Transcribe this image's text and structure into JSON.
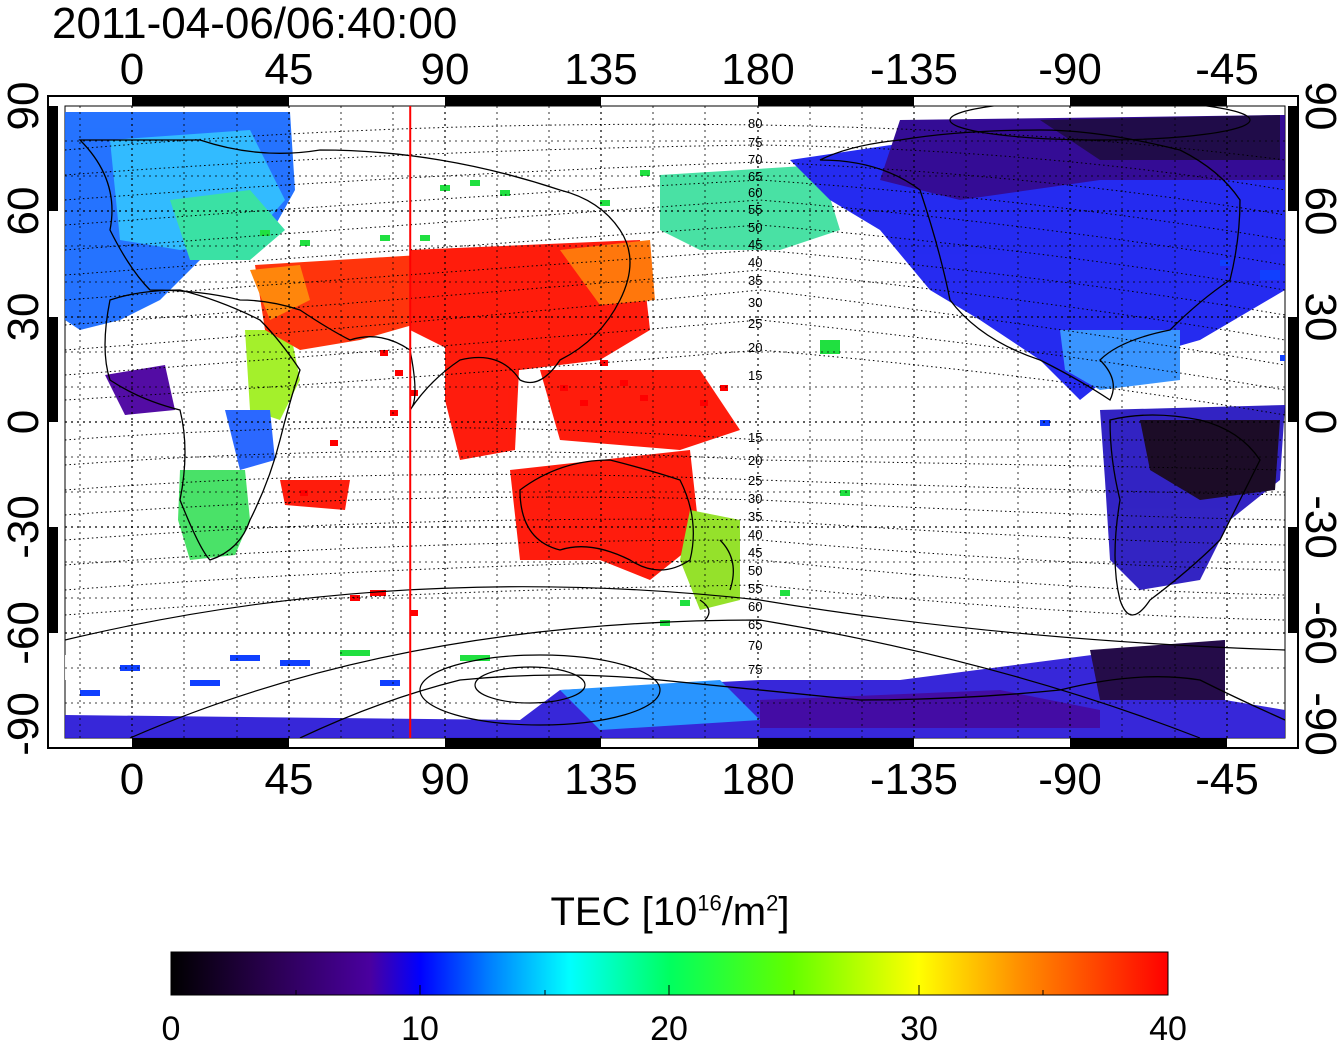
{
  "title": "2011-04-06/06:40:00",
  "map": {
    "lon_ticks_labels": [
      "0",
      "45",
      "90",
      "135",
      "180",
      "-135",
      "-90",
      "-45"
    ],
    "lat_ticks_labels": [
      "90",
      "60",
      "30",
      "0",
      "-30",
      "-60",
      "-90"
    ],
    "contour_labels_north": [
      "80",
      "75",
      "70",
      "65",
      "60",
      "55",
      "50",
      "45",
      "40",
      "35",
      "30",
      "25",
      "20",
      "15"
    ],
    "contour_labels_south": [
      "15",
      "20",
      "25",
      "30",
      "35",
      "40",
      "45",
      "50",
      "55",
      "60",
      "65",
      "70",
      "75"
    ],
    "meridian_marker_lon": 80,
    "meridian_color": "#ff0000"
  },
  "colorbar": {
    "label_main": "TEC  [10",
    "label_sup": "16",
    "label_unit": "/m",
    "label_sup2": "2",
    "label_end": "]",
    "ticks": [
      "0",
      "10",
      "20",
      "30",
      "40"
    ],
    "min": 0,
    "max": 40,
    "colors": [
      "#000000",
      "#2a0050",
      "#4a00a0",
      "#0000ff",
      "#0080ff",
      "#00ffff",
      "#00ff60",
      "#60ff00",
      "#ffff00",
      "#ff9000",
      "#ff0000"
    ]
  }
}
